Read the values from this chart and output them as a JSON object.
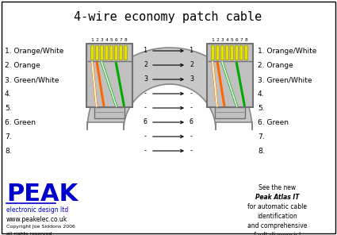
{
  "title": "4-wire economy patch cable",
  "bg_color": "#ffffff",
  "peak_logo_color": "#0000cc",
  "left_labels": [
    "1. Orange/White",
    "2. Orange",
    "3. Green/White",
    "4.",
    "5.",
    "6. Green",
    "7.",
    "8."
  ],
  "right_labels": [
    "1. Orange/White",
    "2. Orange",
    "3. Green/White",
    "4.",
    "5.",
    "6. Green",
    "7.",
    "8."
  ],
  "conn_left": [
    "1",
    "2",
    "3",
    "-",
    "-",
    "6",
    "-",
    "-"
  ],
  "conn_right": [
    "1",
    "2",
    "3",
    "-",
    "-",
    "6",
    "-",
    "-"
  ],
  "advert_text": [
    "See the new",
    "Peak Atlas IT",
    "for automatic cable",
    "identification",
    "and comprehensive",
    "fault diagnosis!"
  ],
  "peak_text": [
    "PEAK",
    "electronic design ltd",
    "www.peakelec.co.uk",
    "Copyright Joe Siddons 2006",
    "all rights reserved"
  ],
  "cable_fill": "#c8c8c8",
  "cable_edge": "#888888",
  "connector_fill": "#c0c0c0",
  "connector_edge": "#707070",
  "pin_fill": "#e8e000",
  "pin_edge": "#999900",
  "wire_ow_color": "#ff8800",
  "wire_o_color": "#ff6600",
  "wire_gw_color": "#00aa00",
  "wire_g_color": "#00aa00",
  "white_stripe": "#ffffff"
}
